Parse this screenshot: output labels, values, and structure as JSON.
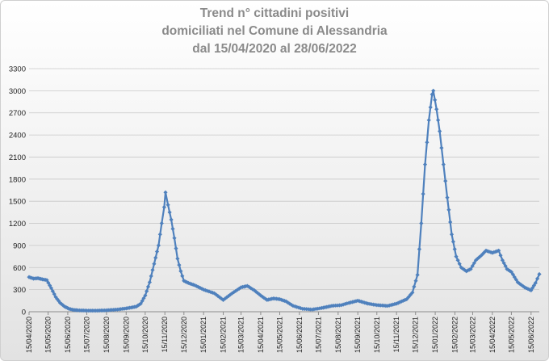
{
  "chart_data": {
    "type": "line",
    "title_lines": [
      "Trend n° cittadini positivi",
      "domiciliati nel Comune di Alessandria",
      "dal 15/04/2020 al 28/06/2022"
    ],
    "xlabel": "",
    "ylabel": "",
    "ylim": [
      0,
      3300
    ],
    "yticks": [
      0,
      300,
      600,
      900,
      1200,
      1500,
      1800,
      2100,
      2400,
      2700,
      3000,
      3300
    ],
    "xticks": [
      "15/04/2020",
      "15/05/2020",
      "15/06/2020",
      "15/07/2020",
      "15/08/2020",
      "15/09/2020",
      "15/10/2020",
      "15/11/2020",
      "15/12/2020",
      "15/01/2021",
      "15/02/2021",
      "15/03/2021",
      "15/04/2021",
      "15/05/2021",
      "15/06/2021",
      "15/07/2021",
      "15/08/2021",
      "15/09/2021",
      "15/10/2021",
      "15/11/2021",
      "15/12/2021",
      "15/01/2022",
      "15/02/2022",
      "15/03/2022",
      "15/04/2022",
      "15/05/2022",
      "15/06/2022"
    ],
    "grid": true,
    "line_color": "#4f81bd",
    "series": [
      {
        "points": [
          [
            "2020-04-15",
            470
          ],
          [
            "2020-04-22",
            450
          ],
          [
            "2020-04-29",
            455
          ],
          [
            "2020-05-06",
            440
          ],
          [
            "2020-05-13",
            430
          ],
          [
            "2020-05-20",
            320
          ],
          [
            "2020-05-27",
            200
          ],
          [
            "2020-06-03",
            120
          ],
          [
            "2020-06-10",
            70
          ],
          [
            "2020-06-17",
            40
          ],
          [
            "2020-06-24",
            25
          ],
          [
            "2020-07-01",
            20
          ],
          [
            "2020-07-15",
            15
          ],
          [
            "2020-08-01",
            15
          ],
          [
            "2020-08-15",
            20
          ],
          [
            "2020-09-01",
            30
          ],
          [
            "2020-09-15",
            45
          ],
          [
            "2020-10-01",
            70
          ],
          [
            "2020-10-08",
            110
          ],
          [
            "2020-10-15",
            220
          ],
          [
            "2020-10-22",
            400
          ],
          [
            "2020-10-29",
            650
          ],
          [
            "2020-11-05",
            900
          ],
          [
            "2020-11-10",
            1200
          ],
          [
            "2020-11-14",
            1420
          ],
          [
            "2020-11-16",
            1620
          ],
          [
            "2020-11-20",
            1450
          ],
          [
            "2020-11-25",
            1250
          ],
          [
            "2020-11-30",
            1000
          ],
          [
            "2020-12-05",
            720
          ],
          [
            "2020-12-10",
            550
          ],
          [
            "2020-12-15",
            420
          ],
          [
            "2020-12-22",
            390
          ],
          [
            "2021-01-01",
            360
          ],
          [
            "2021-01-15",
            300
          ],
          [
            "2021-02-01",
            250
          ],
          [
            "2021-02-15",
            160
          ],
          [
            "2021-03-01",
            250
          ],
          [
            "2021-03-15",
            330
          ],
          [
            "2021-03-25",
            350
          ],
          [
            "2021-04-05",
            290
          ],
          [
            "2021-04-15",
            220
          ],
          [
            "2021-04-25",
            160
          ],
          [
            "2021-05-05",
            180
          ],
          [
            "2021-05-15",
            170
          ],
          [
            "2021-05-25",
            140
          ],
          [
            "2021-06-05",
            80
          ],
          [
            "2021-06-20",
            40
          ],
          [
            "2021-07-05",
            30
          ],
          [
            "2021-07-20",
            50
          ],
          [
            "2021-08-05",
            80
          ],
          [
            "2021-08-20",
            90
          ],
          [
            "2021-09-01",
            120
          ],
          [
            "2021-09-15",
            150
          ],
          [
            "2021-10-01",
            110
          ],
          [
            "2021-10-15",
            90
          ],
          [
            "2021-11-01",
            80
          ],
          [
            "2021-11-15",
            110
          ],
          [
            "2021-12-01",
            170
          ],
          [
            "2021-12-10",
            260
          ],
          [
            "2021-12-18",
            500
          ],
          [
            "2021-12-24",
            1200
          ],
          [
            "2021-12-30",
            2000
          ],
          [
            "2022-01-05",
            2600
          ],
          [
            "2022-01-10",
            2950
          ],
          [
            "2022-01-12",
            3000
          ],
          [
            "2022-01-17",
            2750
          ],
          [
            "2022-01-22",
            2450
          ],
          [
            "2022-01-28",
            2000
          ],
          [
            "2022-02-03",
            1550
          ],
          [
            "2022-02-10",
            1050
          ],
          [
            "2022-02-17",
            750
          ],
          [
            "2022-02-25",
            600
          ],
          [
            "2022-03-05",
            550
          ],
          [
            "2022-03-12",
            580
          ],
          [
            "2022-03-20",
            700
          ],
          [
            "2022-03-28",
            760
          ],
          [
            "2022-04-05",
            830
          ],
          [
            "2022-04-15",
            800
          ],
          [
            "2022-04-25",
            830
          ],
          [
            "2022-05-01",
            700
          ],
          [
            "2022-05-08",
            580
          ],
          [
            "2022-05-15",
            540
          ],
          [
            "2022-05-25",
            400
          ],
          [
            "2022-06-05",
            330
          ],
          [
            "2022-06-15",
            290
          ],
          [
            "2022-06-22",
            390
          ],
          [
            "2022-06-28",
            510
          ]
        ]
      }
    ]
  }
}
